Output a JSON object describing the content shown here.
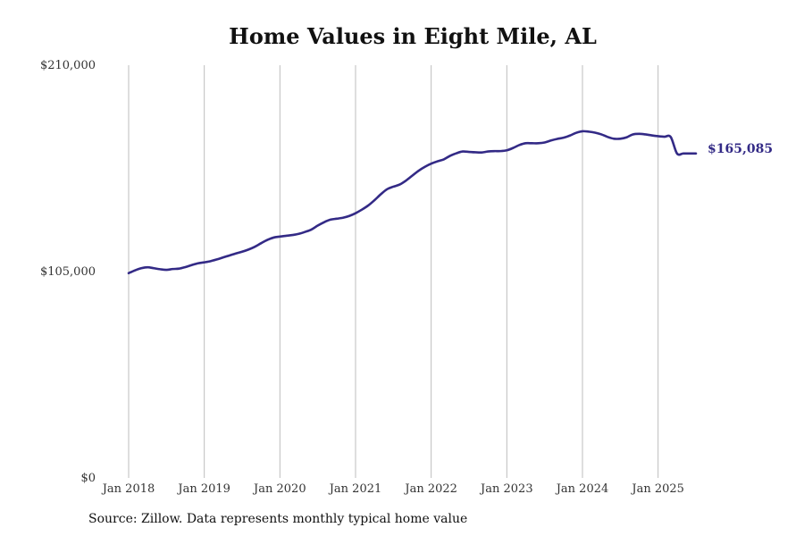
{
  "chart_data": {
    "type": "line",
    "title": "Home Values in Eight Mile, AL",
    "source": "Source: Zillow. Data represents monthly typical home value",
    "ylim": [
      0,
      210000
    ],
    "y_ticks": [
      {
        "value": 0,
        "label": "$0"
      },
      {
        "value": 105000,
        "label": "$105,000"
      },
      {
        "value": 210000,
        "label": "$210,000"
      }
    ],
    "x_range": [
      "2018-01",
      "2025-07"
    ],
    "x_ticks": [
      {
        "date": "2018-01",
        "label": "Jan 2018"
      },
      {
        "date": "2019-01",
        "label": "Jan 2019"
      },
      {
        "date": "2020-01",
        "label": "Jan 2020"
      },
      {
        "date": "2021-01",
        "label": "Jan 2021"
      },
      {
        "date": "2022-01",
        "label": "Jan 2022"
      },
      {
        "date": "2023-01",
        "label": "Jan 2023"
      },
      {
        "date": "2024-01",
        "label": "Jan 2024"
      },
      {
        "date": "2025-01",
        "label": "Jan 2025"
      }
    ],
    "grid": "vertical",
    "line_color": "#332a86",
    "end_label": "$165,085",
    "series": [
      {
        "x": [
          "2018-01",
          "2018-02",
          "2018-03",
          "2018-04",
          "2018-05",
          "2018-06",
          "2018-07",
          "2018-08",
          "2018-09",
          "2018-10",
          "2018-11",
          "2018-12",
          "2019-01",
          "2019-02",
          "2019-03",
          "2019-04",
          "2019-05",
          "2019-06",
          "2019-07",
          "2019-08",
          "2019-09",
          "2019-10",
          "2019-11",
          "2019-12",
          "2020-01",
          "2020-02",
          "2020-03",
          "2020-04",
          "2020-05",
          "2020-06",
          "2020-07",
          "2020-08",
          "2020-09",
          "2020-10",
          "2020-11",
          "2020-12",
          "2021-01",
          "2021-02",
          "2021-03",
          "2021-04",
          "2021-05",
          "2021-06",
          "2021-07",
          "2021-08",
          "2021-09",
          "2021-10",
          "2021-11",
          "2021-12",
          "2022-01",
          "2022-02",
          "2022-03",
          "2022-04",
          "2022-05",
          "2022-06",
          "2022-07",
          "2022-08",
          "2022-09",
          "2022-10",
          "2022-11",
          "2022-12",
          "2023-01",
          "2023-02",
          "2023-03",
          "2023-04",
          "2023-05",
          "2023-06",
          "2023-07",
          "2023-08",
          "2023-09",
          "2023-10",
          "2023-11",
          "2023-12",
          "2024-01",
          "2024-02",
          "2024-03",
          "2024-04",
          "2024-05",
          "2024-06",
          "2024-07",
          "2024-08",
          "2024-09",
          "2024-10",
          "2024-11",
          "2024-12",
          "2025-01",
          "2025-02",
          "2025-03",
          "2025-04",
          "2025-05",
          "2025-06",
          "2025-07"
        ],
        "values": [
          104200,
          105600,
          106700,
          107200,
          106700,
          106200,
          105900,
          106300,
          106500,
          107300,
          108300,
          109200,
          109700,
          110300,
          111200,
          112200,
          113200,
          114200,
          115100,
          116200,
          117600,
          119400,
          121100,
          122300,
          122800,
          123200,
          123600,
          124200,
          125200,
          126400,
          128400,
          130100,
          131400,
          131900,
          132400,
          133300,
          134700,
          136500,
          138600,
          141300,
          144300,
          146900,
          148200,
          149300,
          151300,
          153800,
          156300,
          158300,
          159900,
          161100,
          162100,
          163900,
          165200,
          166100,
          165900,
          165700,
          165600,
          166100,
          166300,
          166300,
          166700,
          167900,
          169400,
          170300,
          170300,
          170300,
          170700,
          171700,
          172500,
          173100,
          174200,
          175600,
          176400,
          176200,
          175700,
          174800,
          173500,
          172600,
          172600,
          173300,
          174800,
          175100,
          174800,
          174300,
          173900,
          173600,
          173500,
          165085,
          165085,
          165085,
          165085
        ]
      }
    ]
  }
}
